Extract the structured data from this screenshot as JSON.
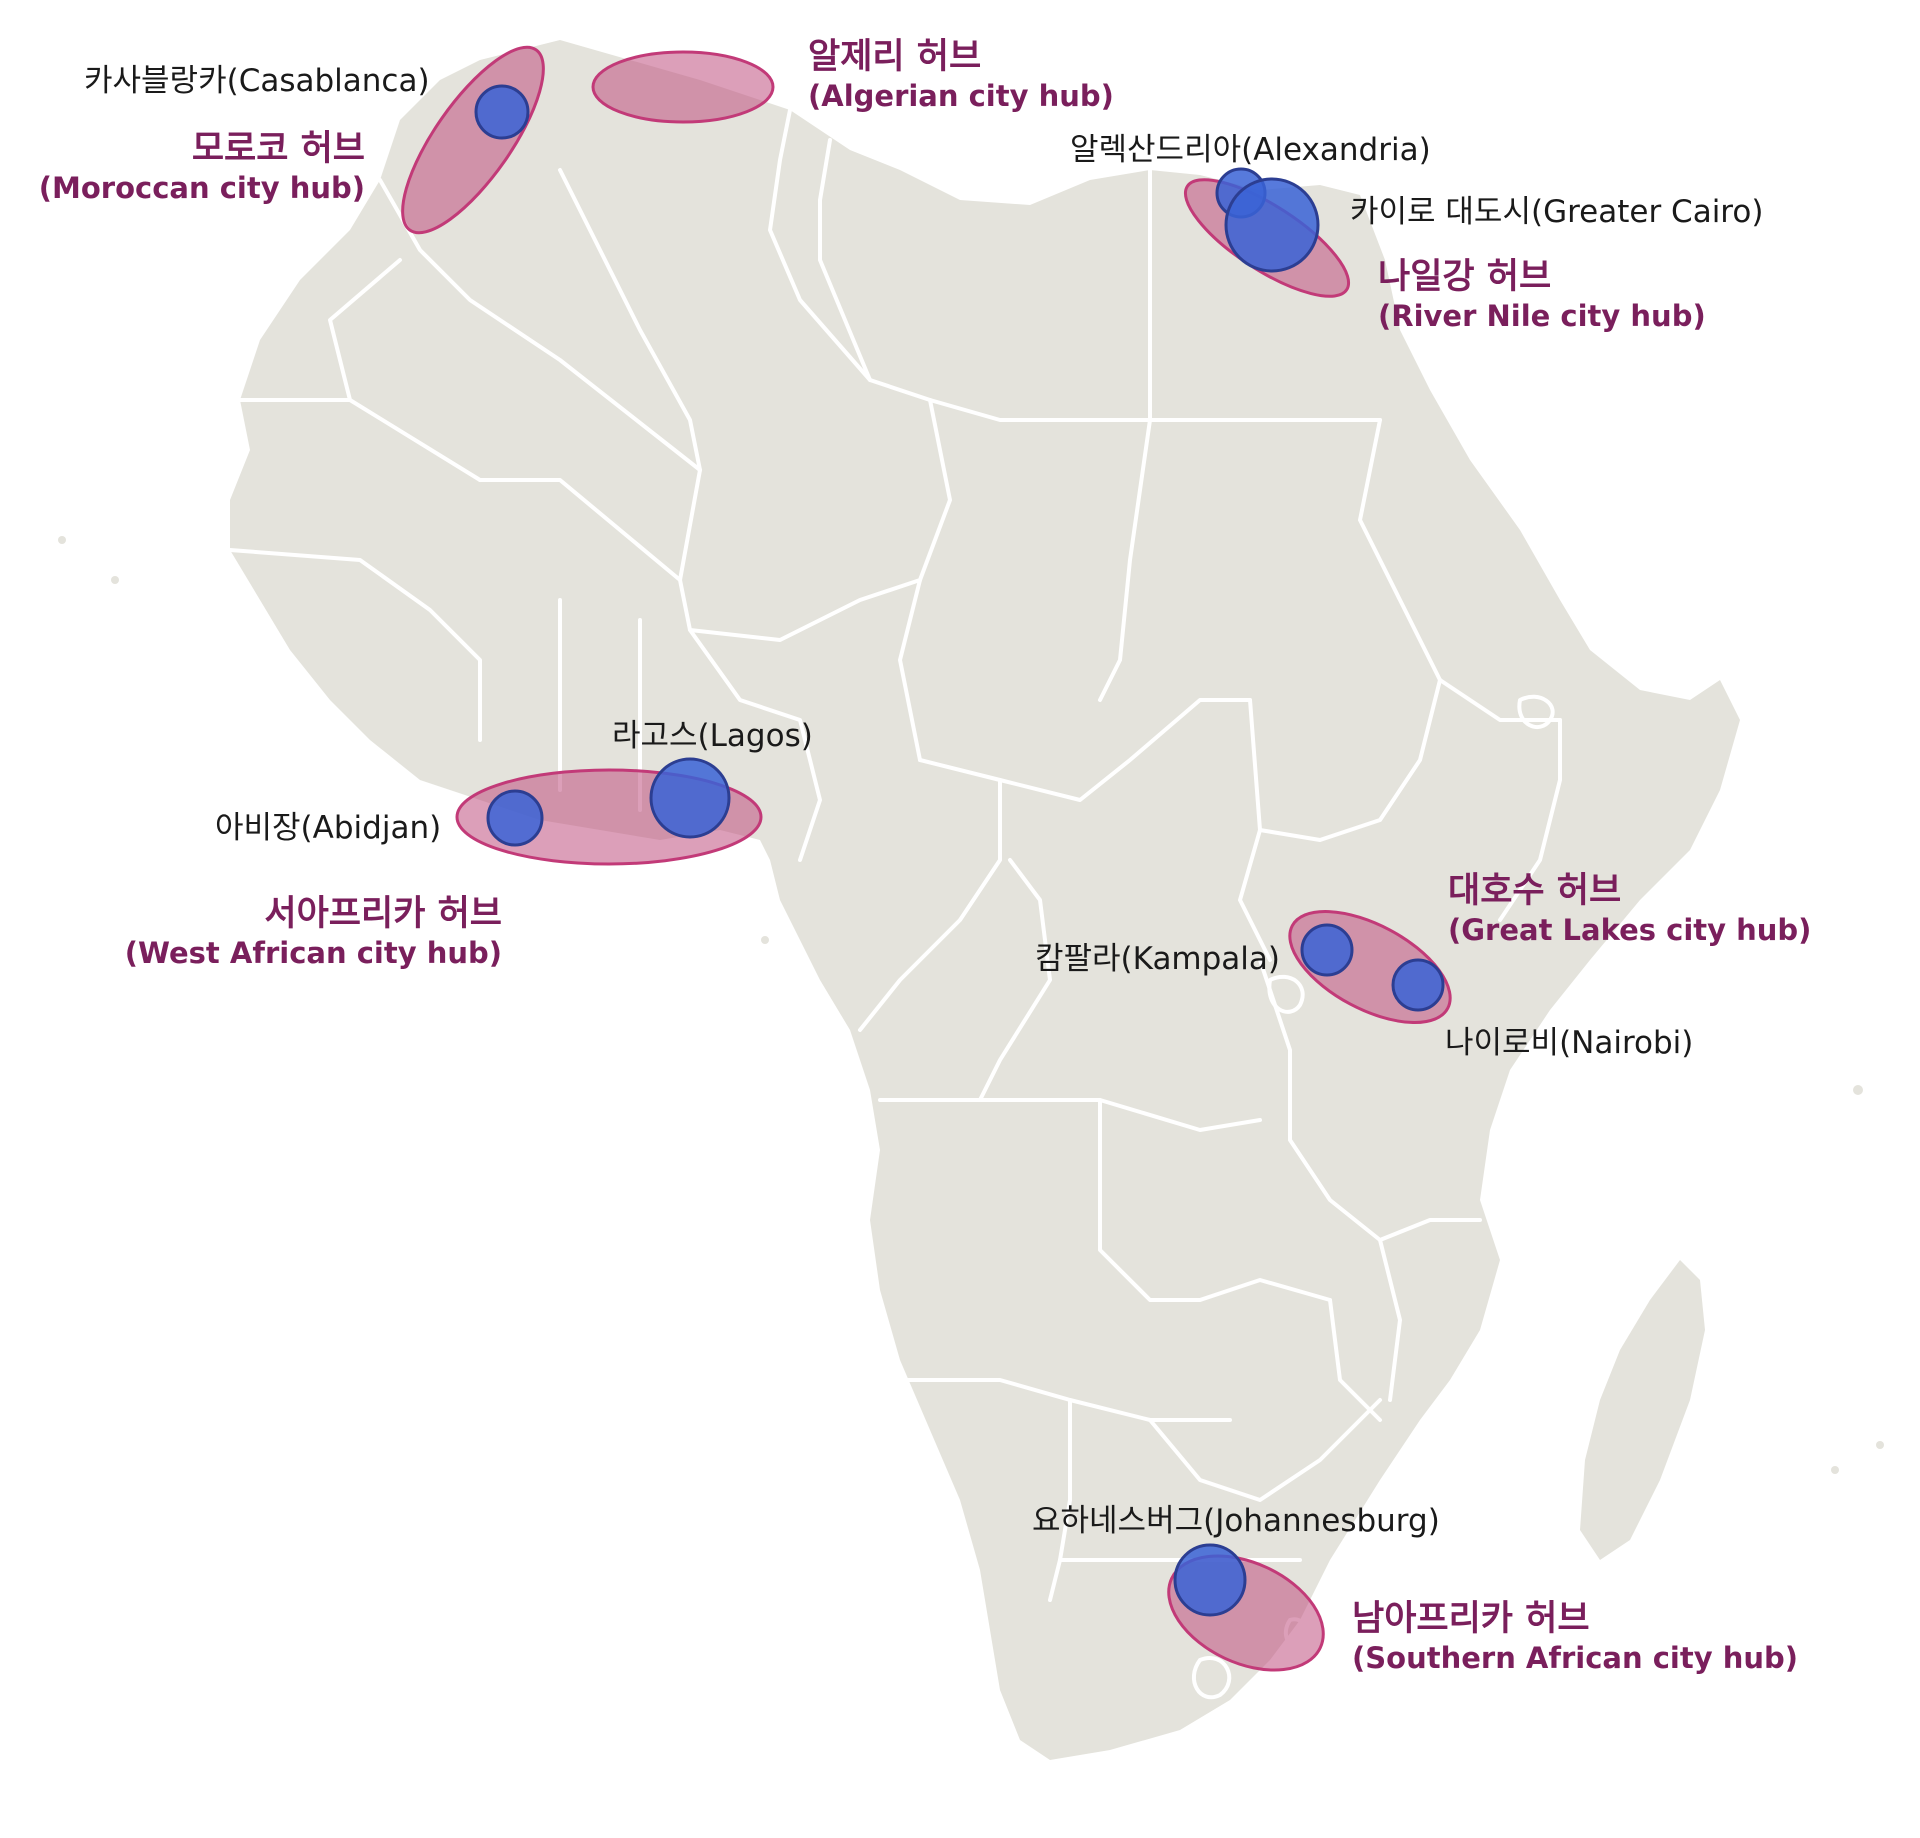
{
  "map": {
    "land_color": "#e4e3dc",
    "border_color": "#ffffff",
    "hub_fill": "#c0507f",
    "hub_stroke": "#c23a78",
    "city_fill": "#3a63d6",
    "city_stroke": "#2c3e92"
  },
  "hubs": [
    {
      "id": "morocco",
      "ko": "모로코 허브",
      "en": "(Moroccan city hub)"
    },
    {
      "id": "algeria",
      "ko": "알제리 허브",
      "en": "(Algerian city hub)"
    },
    {
      "id": "nile",
      "ko": "나일강 허브",
      "en": "(River Nile city hub)"
    },
    {
      "id": "west",
      "ko": "서아프리카 허브",
      "en": "(West African city hub)"
    },
    {
      "id": "lakes",
      "ko": "대호수 허브",
      "en": "(Great Lakes city hub)"
    },
    {
      "id": "south",
      "ko": "남아프리카 허브",
      "en": "(Southern African city hub)"
    }
  ],
  "cities": [
    {
      "id": "casablanca",
      "label": "카사블랑카(Casablanca)"
    },
    {
      "id": "alexandria",
      "label": "알렉산드리아(Alexandria)"
    },
    {
      "id": "cairo",
      "label": "카이로 대도시(Greater Cairo)"
    },
    {
      "id": "lagos",
      "label": "라고스(Lagos)"
    },
    {
      "id": "abidjan",
      "label": "아비장(Abidjan)"
    },
    {
      "id": "kampala",
      "label": "캄팔라(Kampala)"
    },
    {
      "id": "nairobi",
      "label": "나이로비(Nairobi)"
    },
    {
      "id": "johannesburg",
      "label": "요하네스버그(Johannesburg)"
    }
  ]
}
